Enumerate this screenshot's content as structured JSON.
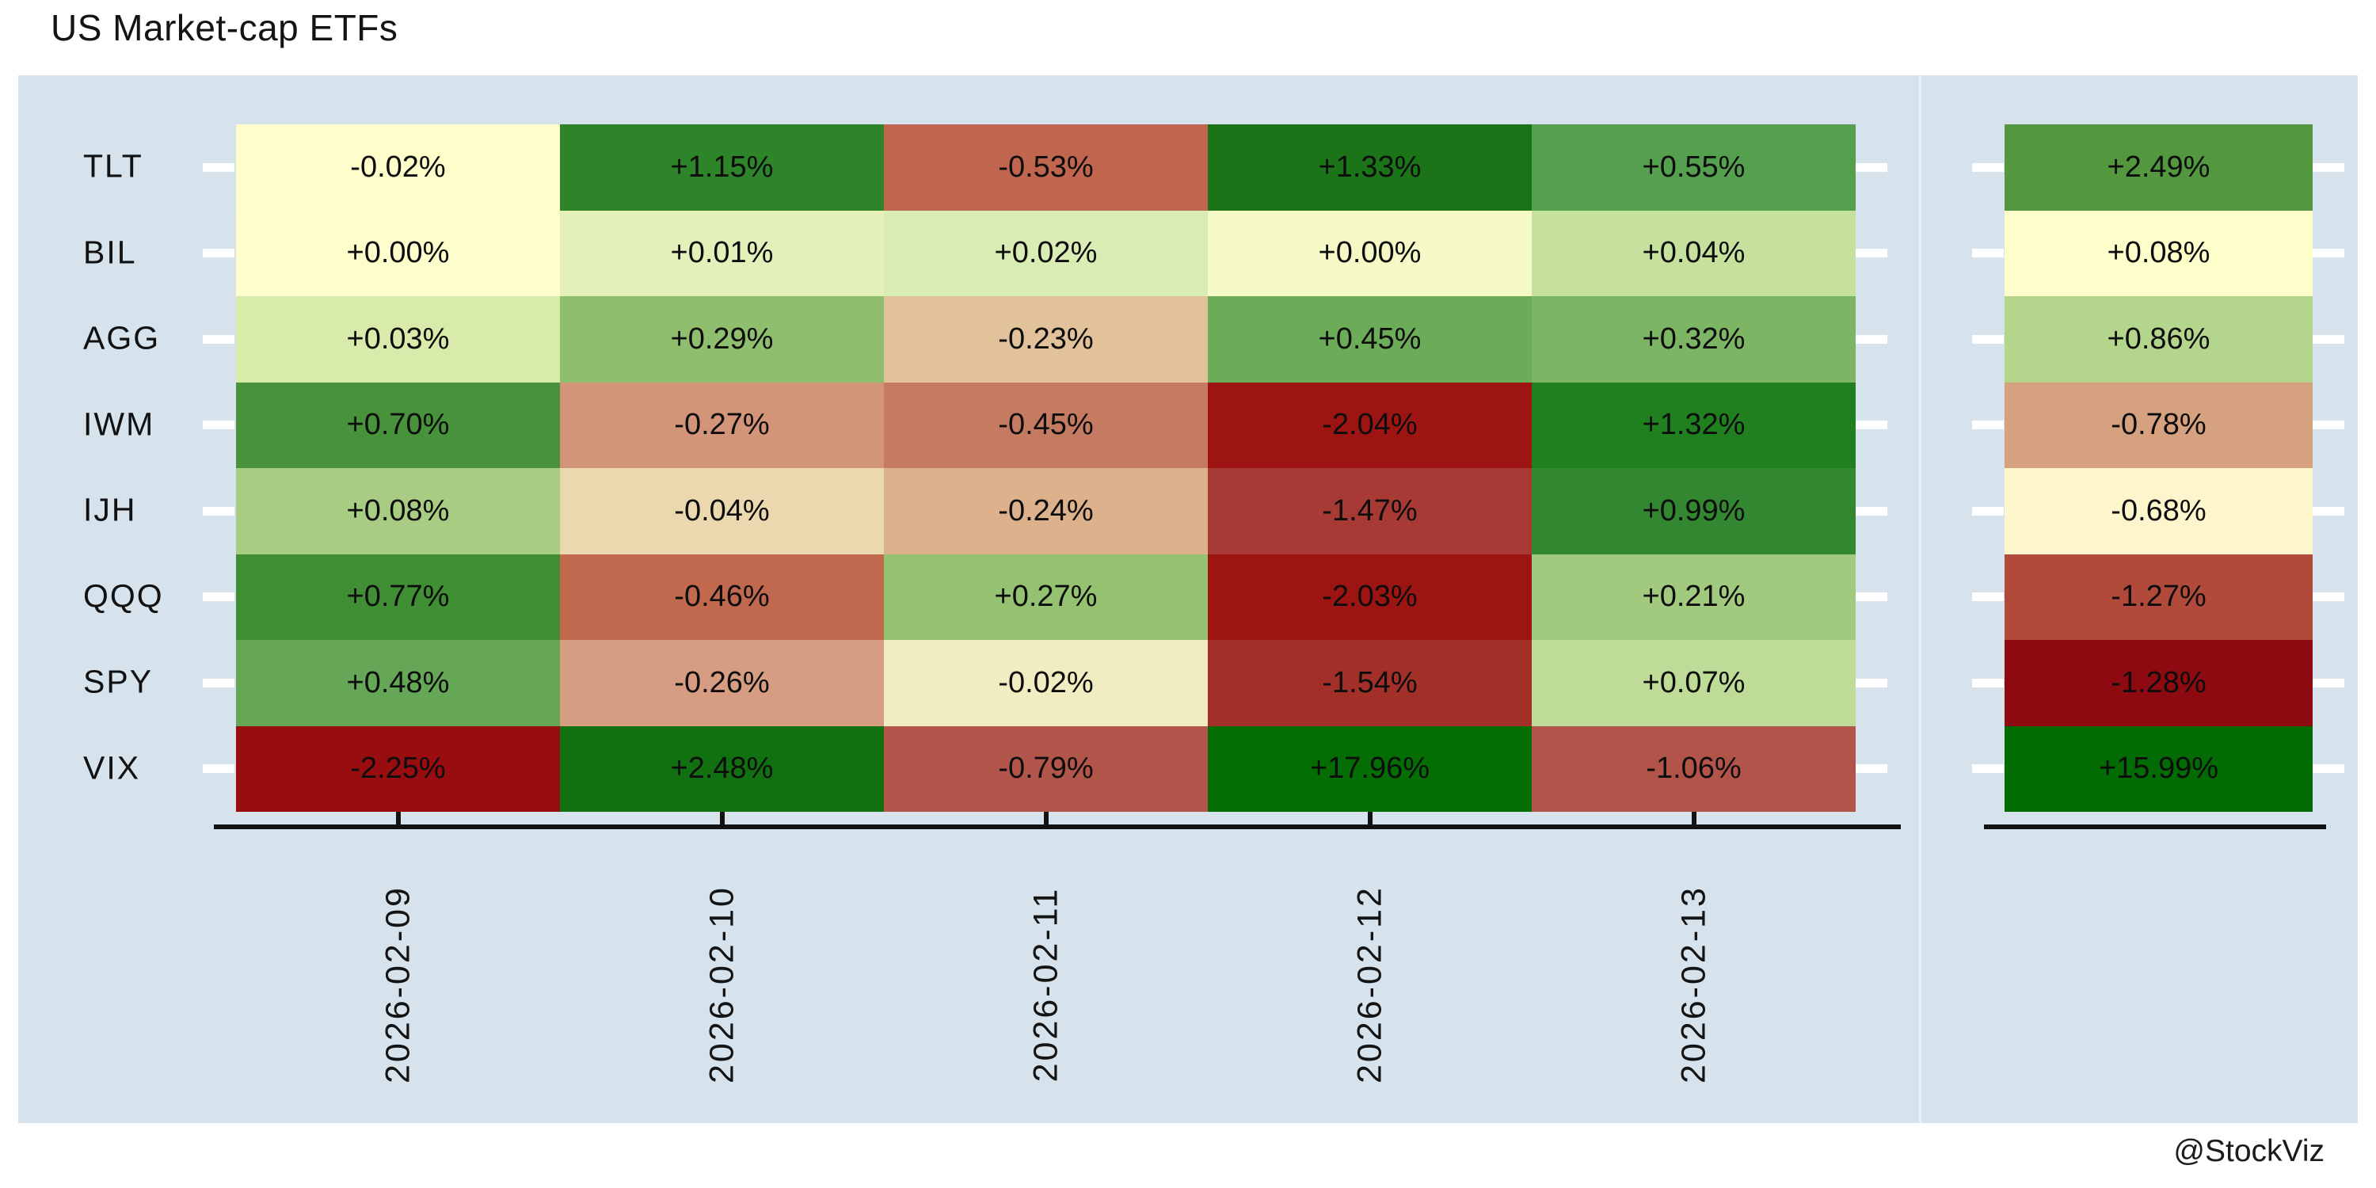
{
  "page": {
    "title": "US Market-cap ETFs",
    "watermark": "@StockViz"
  },
  "colors": {
    "panel_bg": "#d6e3ec",
    "page_bg": "#ffffff",
    "axis": "#131313",
    "y_tick": "#ffffff",
    "cell_text": "#0d0d0d",
    "colormap_negative_extreme": "#8b0000",
    "colormap_midpoint": "#ffffcc",
    "colormap_positive_extreme": "#006400"
  },
  "chart_data": {
    "type": "heatmap",
    "title": "US Market-cap ETFs",
    "rows": [
      "TLT",
      "BIL",
      "AGG",
      "IWM",
      "IJH",
      "QQQ",
      "SPY",
      "VIX"
    ],
    "columns": [
      "2026-02-09",
      "2026-02-10",
      "2026-02-11",
      "2026-02-12",
      "2026-02-13"
    ],
    "values": [
      [
        -0.02,
        1.15,
        -0.53,
        1.33,
        0.55
      ],
      [
        0.0,
        0.01,
        0.02,
        0.0,
        0.04
      ],
      [
        0.03,
        0.29,
        -0.23,
        0.45,
        0.32
      ],
      [
        0.7,
        -0.27,
        -0.45,
        -2.04,
        1.32
      ],
      [
        0.08,
        -0.04,
        -0.24,
        -1.47,
        0.99
      ],
      [
        0.77,
        -0.46,
        0.27,
        -2.03,
        0.21
      ],
      [
        0.48,
        -0.26,
        -0.02,
        -1.54,
        0.07
      ],
      [
        -2.25,
        2.48,
        -0.79,
        17.96,
        -1.06
      ]
    ],
    "labels": [
      [
        "-0.02%",
        "+1.15%",
        "-0.53%",
        "+1.33%",
        "+0.55%"
      ],
      [
        "+0.00%",
        "+0.01%",
        "+0.02%",
        "+0.00%",
        "+0.04%"
      ],
      [
        "+0.03%",
        "+0.29%",
        "-0.23%",
        "+0.45%",
        "+0.32%"
      ],
      [
        "+0.70%",
        "-0.27%",
        "-0.45%",
        "-2.04%",
        "+1.32%"
      ],
      [
        "+0.08%",
        "-0.04%",
        "-0.24%",
        "-1.47%",
        "+0.99%"
      ],
      [
        "+0.77%",
        "-0.46%",
        "+0.27%",
        "-2.03%",
        "+0.21%"
      ],
      [
        "+0.48%",
        "-0.26%",
        "-0.02%",
        "-1.54%",
        "+0.07%"
      ],
      [
        "-2.25%",
        "+2.48%",
        "-0.79%",
        "+17.96%",
        "-1.06%"
      ]
    ],
    "cell_colors": [
      [
        "#fffecb",
        "#2e8428",
        "#c1664e",
        "#1b7518",
        "#55a04e"
      ],
      [
        "#fdfecb",
        "#e3f0ba",
        "#d9ecb4",
        "#f4f9c6",
        "#c6e19e"
      ],
      [
        "#d9ebab",
        "#8fbf6e",
        "#e2c29b",
        "#6cab57",
        "#7cb563"
      ],
      [
        "#47923a",
        "#d29579",
        "#c57b62",
        "#9c1512",
        "#20801f"
      ],
      [
        "#a8cd82",
        "#ecd8ae",
        "#dcb18b",
        "#a83a35",
        "#338731"
      ],
      [
        "#418f35",
        "#c0694f",
        "#94c271",
        "#9c1512",
        "#a2ca7f"
      ],
      [
        "#66a657",
        "#d79d82",
        "#f2ecc2",
        "#a22f28",
        "#bedb97"
      ],
      [
        "#990d10",
        "#117111",
        "#b2554a",
        "#046e04",
        "#b2544a"
      ]
    ],
    "summary": {
      "labels": [
        "+2.49%",
        "+0.08%",
        "+0.86%",
        "-0.78%",
        "-0.68%",
        "-1.27%",
        "-1.28%",
        "+15.99%"
      ],
      "values": [
        2.49,
        0.08,
        0.86,
        -0.78,
        -0.68,
        -1.27,
        -1.28,
        15.99
      ],
      "colors": [
        "#53973f",
        "#fdfeca",
        "#b4d68c",
        "#d6a17f",
        "#fdf6cd",
        "#b24a3c",
        "#8c0a10",
        "#036b03"
      ]
    },
    "legend": "none",
    "grid": "off",
    "x_tick_rotation_deg": 90
  }
}
